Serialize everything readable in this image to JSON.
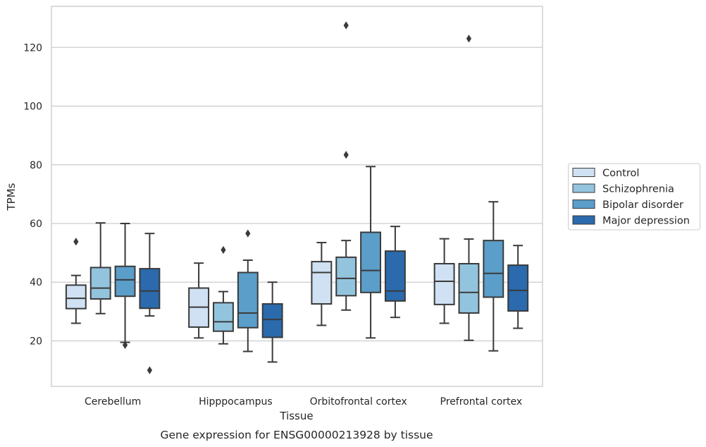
{
  "chart_data": {
    "type": "box",
    "title": "",
    "caption": "Gene expression for ENSG00000213928 by tissue",
    "xlabel": "Tissue",
    "ylabel": "TPMs",
    "categories": [
      "Cerebellum",
      "Hipppocampus",
      "Orbitofrontal cortex",
      "Prefrontal cortex"
    ],
    "yticks": [
      20,
      40,
      60,
      80,
      100,
      120
    ],
    "ylim": [
      4.5,
      134
    ],
    "grid": "horizontal",
    "legend_position": "right",
    "series": [
      {
        "name": "Control",
        "color": "#cfe1f2",
        "boxes": [
          {
            "whislo": 26.0,
            "q1": 31.0,
            "med": 34.5,
            "q3": 39.0,
            "whishi": 42.3,
            "fliers": [
              53.8
            ]
          },
          {
            "whislo": 21.0,
            "q1": 24.7,
            "med": 31.5,
            "q3": 38.0,
            "whishi": 46.5,
            "fliers": []
          },
          {
            "whislo": 25.3,
            "q1": 32.6,
            "med": 43.3,
            "q3": 47.0,
            "whishi": 53.5,
            "fliers": []
          },
          {
            "whislo": 26.0,
            "q1": 32.4,
            "med": 40.3,
            "q3": 46.3,
            "whishi": 54.8,
            "fliers": []
          }
        ]
      },
      {
        "name": "Schizophrenia",
        "color": "#93c4de",
        "boxes": [
          {
            "whislo": 29.3,
            "q1": 34.3,
            "med": 38.0,
            "q3": 45.0,
            "whishi": 60.2,
            "fliers": []
          },
          {
            "whislo": 19.0,
            "q1": 23.3,
            "med": 26.5,
            "q3": 33.0,
            "whishi": 36.8,
            "fliers": [
              51.0
            ]
          },
          {
            "whislo": 30.5,
            "q1": 35.4,
            "med": 41.3,
            "q3": 48.5,
            "whishi": 54.2,
            "fliers": [
              83.4,
              127.5
            ]
          },
          {
            "whislo": 20.2,
            "q1": 29.5,
            "med": 36.5,
            "q3": 46.3,
            "whishi": 54.7,
            "fliers": [
              123.0
            ]
          }
        ]
      },
      {
        "name": "Bipolar disorder",
        "color": "#5a9ec9",
        "boxes": [
          {
            "whislo": 19.5,
            "q1": 35.2,
            "med": 40.8,
            "q3": 45.4,
            "whishi": 60.0,
            "fliers": [
              18.6
            ]
          },
          {
            "whislo": 16.4,
            "q1": 24.5,
            "med": 29.5,
            "q3": 43.3,
            "whishi": 47.5,
            "fliers": [
              56.6
            ]
          },
          {
            "whislo": 21.0,
            "q1": 36.5,
            "med": 44.0,
            "q3": 57.0,
            "whishi": 79.4,
            "fliers": []
          },
          {
            "whislo": 16.6,
            "q1": 34.9,
            "med": 43.0,
            "q3": 54.2,
            "whishi": 67.4,
            "fliers": []
          }
        ]
      },
      {
        "name": "Major depression",
        "color": "#2a6aad",
        "boxes": [
          {
            "whislo": 28.5,
            "q1": 31.1,
            "med": 37.0,
            "q3": 44.6,
            "whishi": 56.6,
            "fliers": [
              10.0
            ]
          },
          {
            "whislo": 12.8,
            "q1": 21.2,
            "med": 27.3,
            "q3": 32.6,
            "whishi": 40.0,
            "fliers": []
          },
          {
            "whislo": 28.0,
            "q1": 33.6,
            "med": 37.0,
            "q3": 50.6,
            "whishi": 59.0,
            "fliers": []
          },
          {
            "whislo": 24.3,
            "q1": 30.2,
            "med": 37.2,
            "q3": 45.8,
            "whishi": 52.5,
            "fliers": []
          }
        ]
      }
    ]
  },
  "styles": {
    "box_edge_color": "#3a3a3a",
    "grid_color": "#cccccc",
    "frame_color": "#cccccc",
    "legend_border_color": "#cccccc",
    "text_color": "#262626",
    "background": "#ffffff"
  }
}
